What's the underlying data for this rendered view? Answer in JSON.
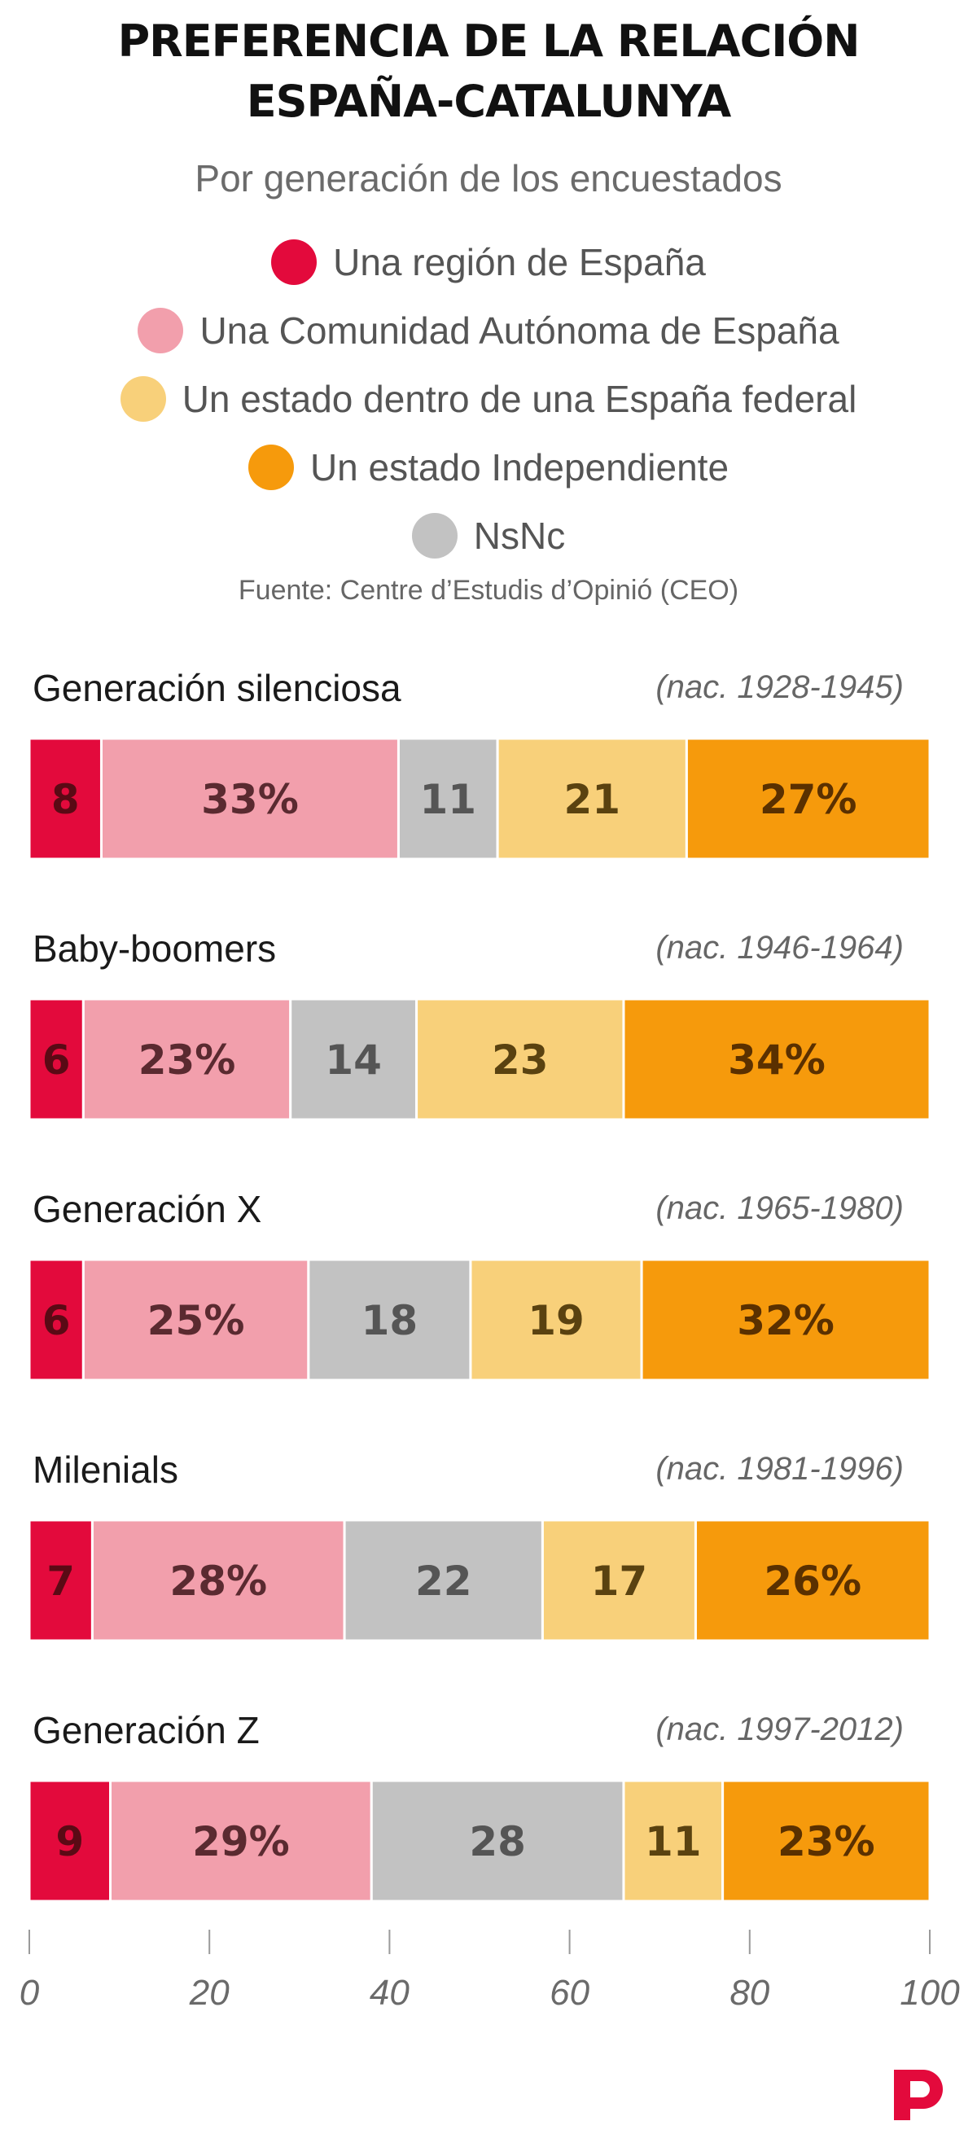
{
  "header": {
    "title_line1": "PREFERENCIA DE LA RELACIÓN",
    "title_line2": "ESPAÑA-CATALUNYA",
    "subtitle": "Por generación de los encuestados",
    "source": "Fuente: Centre d’Estudis d’Opinió (CEO)"
  },
  "legend": [
    {
      "label": "Una región de España",
      "color": "#e30a3c"
    },
    {
      "label": "Una Comunidad Autónoma de España",
      "color": "#f29fac"
    },
    {
      "label": "Un estado dentro de una España federal",
      "color": "#f8d07a"
    },
    {
      "label": "Un estado Independiente",
      "color": "#f69a0c"
    },
    {
      "label": "NsNc",
      "color": "#c2c2c2"
    }
  ],
  "chart_data": {
    "type": "bar",
    "orientation": "horizontal-stacked",
    "categories": [
      "Generación silenciosa",
      "Baby-boomers",
      "Generación X",
      "Milenials",
      "Generación Z"
    ],
    "category_years": [
      "(nac. 1928-1945)",
      "(nac. 1946-1964)",
      "(nac. 1965-1980)",
      "(nac. 1981-1996)",
      "(nac. 1997-2012)"
    ],
    "series": [
      {
        "name": "Una región de España",
        "color": "#e30a3c",
        "label_color": "#5a0a15",
        "values": [
          8,
          6,
          6,
          7,
          9
        ],
        "labels": [
          "8",
          "6",
          "6",
          "7",
          "9"
        ]
      },
      {
        "name": "Una Comunidad Autónoma de España",
        "color": "#f29fac",
        "label_color": "#5a2a30",
        "values": [
          33,
          23,
          25,
          28,
          29
        ],
        "labels": [
          "33%",
          "23%",
          "25%",
          "28%",
          "29%"
        ]
      },
      {
        "name": "NsNc",
        "color": "#c2c2c2",
        "label_color": "#555555",
        "values": [
          11,
          14,
          18,
          22,
          28
        ],
        "labels": [
          "11",
          "14",
          "18",
          "22",
          "28"
        ]
      },
      {
        "name": "Un estado dentro de una España federal",
        "color": "#f8d07a",
        "label_color": "#5a4210",
        "values": [
          21,
          23,
          19,
          17,
          11
        ],
        "labels": [
          "21",
          "23",
          "19",
          "17",
          "11"
        ]
      },
      {
        "name": "Un estado Independiente",
        "color": "#f69a0c",
        "label_color": "#5a3000",
        "values": [
          27,
          34,
          32,
          26,
          23
        ],
        "labels": [
          "27%",
          "34%",
          "32%",
          "26%",
          "23%"
        ]
      }
    ],
    "xlim": [
      0,
      100
    ],
    "xticks": [
      "0",
      "20",
      "40",
      "60",
      "80",
      "100"
    ],
    "grid": false,
    "legend_position": "top"
  },
  "brand": {
    "logo_icon": "publico-p-logo-icon",
    "color": "#e30a3c"
  }
}
